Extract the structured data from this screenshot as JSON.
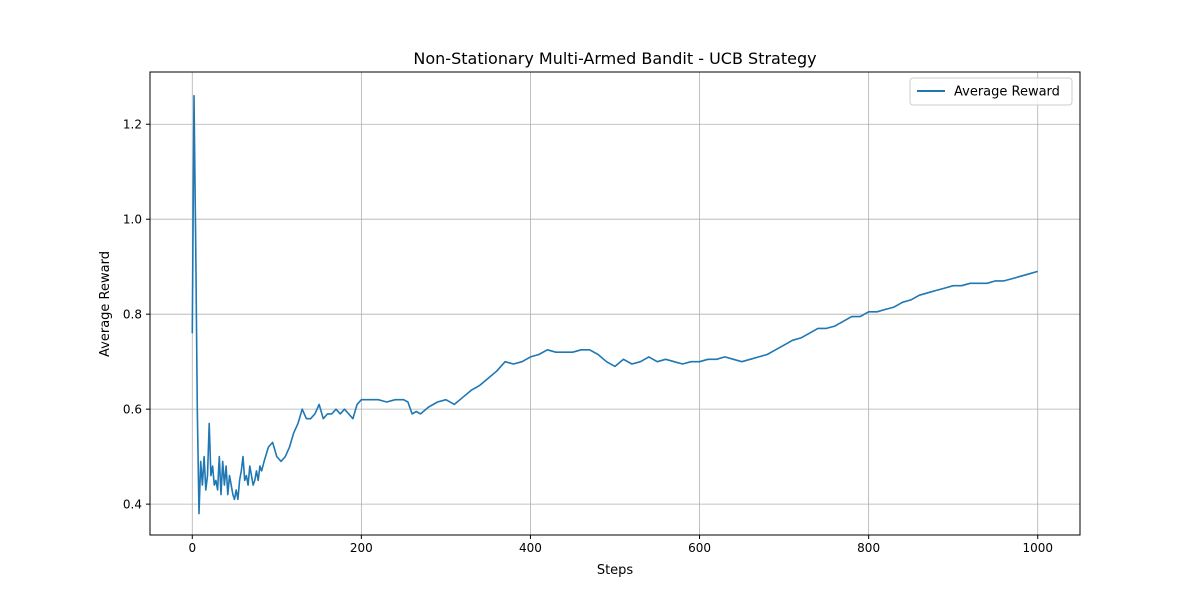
{
  "chart_data": {
    "type": "line",
    "title": "Non-Stationary Multi-Armed Bandit - UCB Strategy",
    "xlabel": "Steps",
    "ylabel": "Average Reward",
    "xlim": [
      -50,
      1050
    ],
    "ylim": [
      0.335,
      1.31
    ],
    "xticks": [
      0,
      200,
      400,
      600,
      800,
      1000
    ],
    "xtick_labels": [
      "0",
      "200",
      "400",
      "600",
      "800",
      "1000"
    ],
    "yticks": [
      0.4,
      0.6,
      0.8,
      1.0,
      1.2
    ],
    "ytick_labels": [
      "0.4",
      "0.6",
      "0.8",
      "1.0",
      "1.2"
    ],
    "grid": true,
    "legend_position": "top-right",
    "series": [
      {
        "name": "Average Reward",
        "color": "#1f77b4",
        "x": [
          0,
          2,
          4,
          6,
          8,
          10,
          12,
          14,
          16,
          18,
          20,
          22,
          24,
          26,
          28,
          30,
          32,
          34,
          36,
          38,
          40,
          42,
          44,
          46,
          48,
          50,
          52,
          54,
          56,
          58,
          60,
          62,
          64,
          66,
          68,
          70,
          72,
          74,
          76,
          78,
          80,
          82,
          85,
          90,
          95,
          100,
          105,
          110,
          115,
          120,
          125,
          130,
          135,
          140,
          145,
          150,
          155,
          160,
          165,
          170,
          175,
          180,
          185,
          190,
          195,
          200,
          205,
          210,
          220,
          230,
          240,
          250,
          255,
          260,
          265,
          270,
          280,
          290,
          300,
          310,
          320,
          330,
          340,
          350,
          360,
          370,
          380,
          390,
          400,
          410,
          420,
          430,
          440,
          450,
          460,
          470,
          480,
          490,
          500,
          510,
          520,
          530,
          540,
          550,
          560,
          570,
          580,
          590,
          600,
          610,
          620,
          630,
          640,
          650,
          660,
          670,
          680,
          690,
          700,
          710,
          720,
          730,
          740,
          750,
          760,
          770,
          780,
          790,
          800,
          810,
          820,
          830,
          840,
          850,
          860,
          870,
          880,
          890,
          900,
          910,
          920,
          930,
          940,
          950,
          960,
          970,
          980,
          990,
          1000
        ],
        "y": [
          0.76,
          1.26,
          0.95,
          0.6,
          0.38,
          0.49,
          0.44,
          0.5,
          0.43,
          0.46,
          0.57,
          0.46,
          0.48,
          0.44,
          0.45,
          0.43,
          0.5,
          0.42,
          0.49,
          0.44,
          0.48,
          0.42,
          0.46,
          0.44,
          0.42,
          0.41,
          0.43,
          0.41,
          0.45,
          0.47,
          0.5,
          0.45,
          0.46,
          0.44,
          0.48,
          0.46,
          0.44,
          0.45,
          0.47,
          0.45,
          0.48,
          0.47,
          0.49,
          0.52,
          0.53,
          0.5,
          0.49,
          0.5,
          0.52,
          0.55,
          0.57,
          0.6,
          0.58,
          0.58,
          0.59,
          0.61,
          0.58,
          0.59,
          0.59,
          0.6,
          0.59,
          0.6,
          0.59,
          0.58,
          0.61,
          0.62,
          0.62,
          0.62,
          0.62,
          0.615,
          0.62,
          0.62,
          0.615,
          0.59,
          0.595,
          0.59,
          0.605,
          0.615,
          0.62,
          0.61,
          0.625,
          0.64,
          0.65,
          0.665,
          0.68,
          0.7,
          0.695,
          0.7,
          0.71,
          0.715,
          0.725,
          0.72,
          0.72,
          0.72,
          0.725,
          0.725,
          0.715,
          0.7,
          0.69,
          0.705,
          0.695,
          0.7,
          0.71,
          0.7,
          0.705,
          0.7,
          0.695,
          0.7,
          0.7,
          0.705,
          0.705,
          0.71,
          0.705,
          0.7,
          0.705,
          0.71,
          0.715,
          0.725,
          0.735,
          0.745,
          0.75,
          0.76,
          0.77,
          0.77,
          0.775,
          0.785,
          0.795,
          0.795,
          0.805,
          0.805,
          0.81,
          0.815,
          0.825,
          0.83,
          0.84,
          0.845,
          0.85,
          0.855,
          0.86,
          0.86,
          0.865,
          0.865,
          0.865,
          0.87,
          0.87,
          0.875,
          0.88,
          0.885,
          0.89
        ]
      }
    ]
  }
}
